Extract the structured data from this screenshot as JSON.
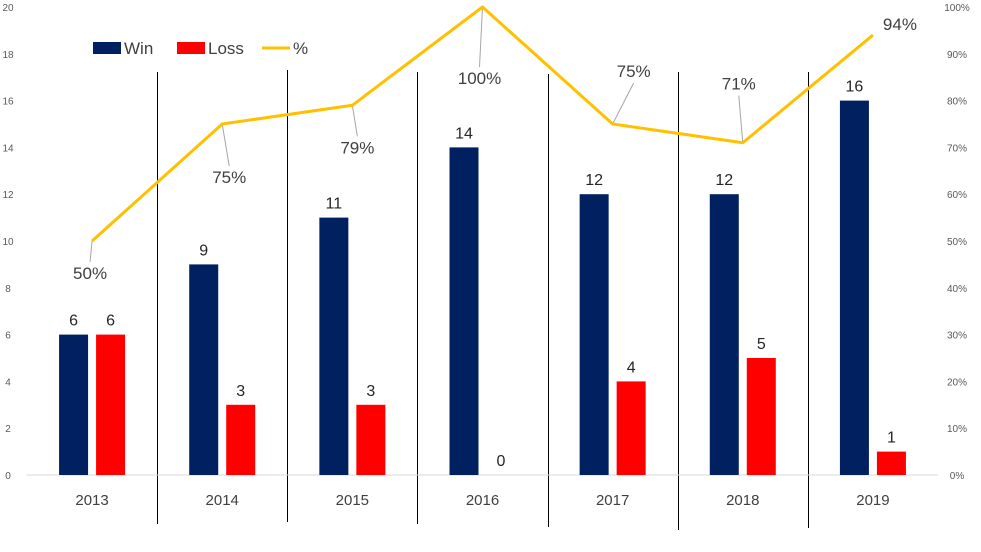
{
  "chart_data": {
    "type": "bar",
    "categories": [
      "2013",
      "2014",
      "2015",
      "2016",
      "2017",
      "2018",
      "2019"
    ],
    "series": [
      {
        "name": "Win",
        "type": "bar",
        "axis": "left",
        "color": "#002060",
        "values": [
          6,
          9,
          11,
          14,
          12,
          12,
          16
        ]
      },
      {
        "name": "Loss",
        "type": "bar",
        "axis": "left",
        "color": "#ff0000",
        "values": [
          6,
          3,
          3,
          0,
          4,
          5,
          1
        ]
      },
      {
        "name": "%",
        "type": "line",
        "axis": "right",
        "color": "#ffc000",
        "values": [
          50,
          75,
          79,
          100,
          75,
          71,
          94
        ],
        "labels": [
          "50%",
          "75%",
          "79%",
          "100%",
          "75%",
          "71%",
          "94%"
        ]
      }
    ],
    "ylim": [
      0,
      20
    ],
    "y_ticks": [
      "0",
      "2",
      "4",
      "6",
      "8",
      "10",
      "12",
      "14",
      "16",
      "18",
      "20"
    ],
    "y2lim": [
      0,
      100
    ],
    "y2_ticks": [
      "0%",
      "10%",
      "20%",
      "30%",
      "40%",
      "50%",
      "60%",
      "70%",
      "80%",
      "90%",
      "100%"
    ],
    "legend_position": "top-left",
    "grid": false,
    "category_separators": true
  }
}
